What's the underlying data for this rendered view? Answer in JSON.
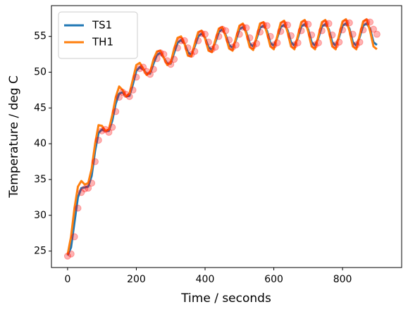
{
  "chart_data": {
    "type": "line",
    "xlabel": "Time / seconds",
    "ylabel": "Temperature / deg C",
    "x": [
      0,
      10,
      20,
      30,
      40,
      50,
      60,
      70,
      80,
      90,
      100,
      110,
      120,
      130,
      140,
      150,
      160,
      170,
      180,
      190,
      200,
      210,
      220,
      230,
      240,
      250,
      260,
      270,
      280,
      290,
      300,
      310,
      320,
      330,
      340,
      350,
      360,
      370,
      380,
      390,
      400,
      410,
      420,
      430,
      440,
      450,
      460,
      470,
      480,
      490,
      500,
      510,
      520,
      530,
      540,
      550,
      560,
      570,
      580,
      590,
      600,
      610,
      620,
      630,
      640,
      650,
      660,
      670,
      680,
      690,
      700,
      710,
      720,
      730,
      740,
      750,
      760,
      770,
      780,
      790,
      800,
      810,
      820,
      830,
      840,
      850,
      860,
      870,
      880,
      890,
      900
    ],
    "series": [
      {
        "style": "markers",
        "color": "#ff0000",
        "values": [
          24.3,
          24.6,
          27,
          31,
          33.2,
          33.7,
          33.8,
          34.5,
          37.5,
          40.5,
          41.8,
          42,
          41.6,
          42.3,
          44.5,
          46.5,
          47.2,
          46.9,
          46.6,
          47.5,
          49.3,
          50.5,
          50.7,
          50.1,
          49.7,
          50.4,
          51.9,
          52.7,
          52.5,
          51.6,
          51.1,
          51.8,
          53.4,
          54.4,
          54.4,
          53.4,
          52.5,
          52.9,
          54.4,
          55.4,
          55.3,
          54.2,
          53.2,
          53.5,
          55,
          56,
          55.8,
          54.5,
          53.5,
          53.8,
          55.3,
          56.3,
          56.2,
          54.8,
          53.7,
          54,
          55.6,
          56.6,
          56.5,
          55,
          53.8,
          54.1,
          55.7,
          56.7,
          56.6,
          55.1,
          53.8,
          54.1,
          55.8,
          56.8,
          56.7,
          55.2,
          53.8,
          54.1,
          55.8,
          56.8,
          56.8,
          55.2,
          53.8,
          54.2,
          55.9,
          56.9,
          56.9,
          55.3,
          53.8,
          54.2,
          55.9,
          57,
          57,
          56,
          55.3
        ]
      },
      {
        "name": "TS1",
        "style": "line",
        "color": "#1f77b4",
        "values": [
          24.4,
          25.5,
          29,
          32.5,
          33.8,
          33.9,
          34,
          35.5,
          39,
          41.5,
          42,
          41.8,
          41.8,
          43.2,
          45.6,
          47,
          47.2,
          46.6,
          46.7,
          48.3,
          50.2,
          50.7,
          50.4,
          49.8,
          49.8,
          51.2,
          52.4,
          52.7,
          52,
          51.2,
          51.2,
          52.7,
          54.1,
          54.5,
          54,
          52.8,
          52.4,
          53.6,
          55,
          55.4,
          54.8,
          53.5,
          53.1,
          54.2,
          55.6,
          56,
          55.2,
          53.8,
          53.4,
          54.5,
          56,
          56.3,
          55.6,
          54,
          53.6,
          54.7,
          56.2,
          56.5,
          55.8,
          54.1,
          53.7,
          54.8,
          56.3,
          56.6,
          55.9,
          54.2,
          53.7,
          54.8,
          56.4,
          56.7,
          56,
          54.2,
          53.7,
          54.8,
          56.4,
          56.7,
          56,
          54.2,
          53.7,
          54.9,
          56.5,
          56.8,
          56.1,
          54.2,
          53.7,
          54.9,
          56.5,
          56.8,
          56.1,
          54.2,
          53.8
        ]
      },
      {
        "name": "TH1",
        "style": "line",
        "color": "#ff7f0e",
        "values": [
          24.5,
          27,
          31,
          34,
          34.8,
          34.3,
          34.5,
          36.5,
          40,
          42.6,
          42.5,
          41.8,
          42,
          44,
          46.5,
          48,
          47.5,
          46.6,
          47,
          49,
          51,
          51.3,
          50.5,
          49.6,
          50,
          51.8,
          52.9,
          53,
          52,
          51,
          51.3,
          53.3,
          54.8,
          55,
          54,
          52.3,
          52.2,
          54,
          55.6,
          55.8,
          54.7,
          53,
          52.8,
          54.5,
          56.1,
          56.3,
          55,
          53.3,
          53,
          54.8,
          56.5,
          56.8,
          55.4,
          53.5,
          53.1,
          55,
          56.8,
          57,
          55.5,
          53.6,
          53.2,
          55,
          56.9,
          57.2,
          55.6,
          53.6,
          53.2,
          55.1,
          57,
          57.3,
          55.7,
          53.6,
          53.2,
          55.1,
          57,
          57.3,
          55.7,
          53.6,
          53.2,
          55.2,
          57.1,
          57.4,
          55.8,
          53.6,
          53.2,
          55.2,
          57.1,
          57.4,
          55.8,
          53.6,
          53.2
        ]
      }
    ],
    "xlim": [
      -47,
      972
    ],
    "xticks": [
      0,
      200,
      400,
      600,
      800
    ],
    "ylim": [
      22.7,
      59.3
    ],
    "yticks": [
      25,
      30,
      35,
      40,
      45,
      50,
      55
    ],
    "grid": false,
    "legend": "upper left"
  }
}
